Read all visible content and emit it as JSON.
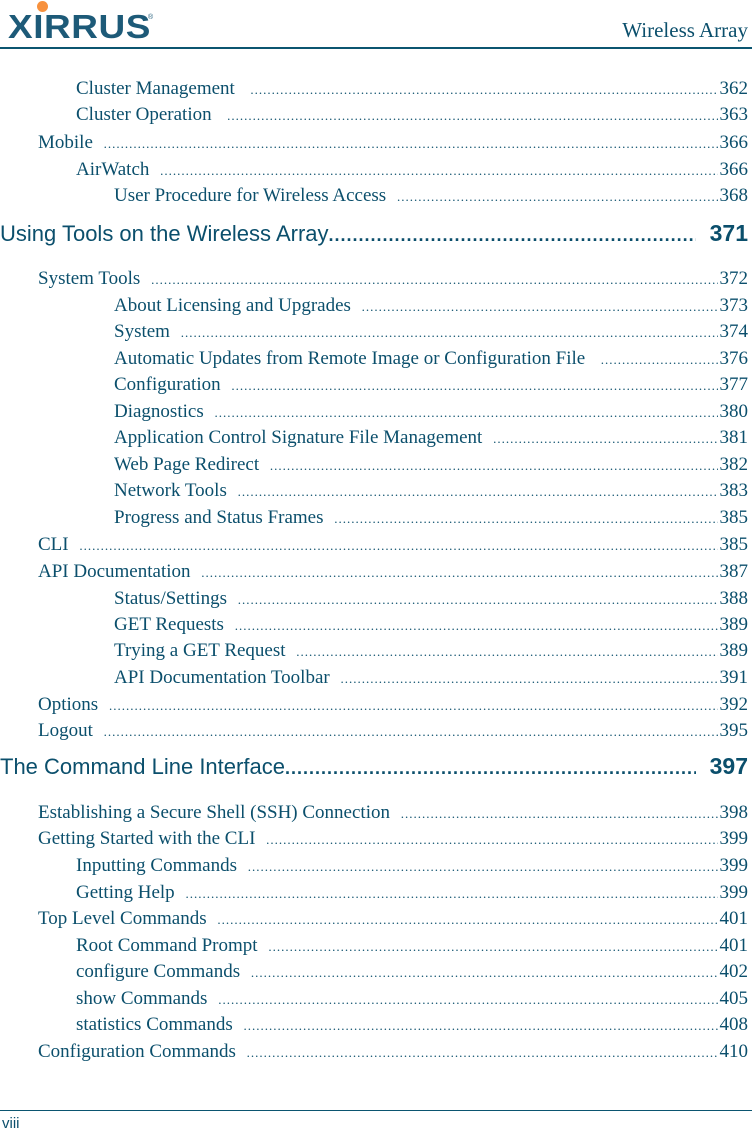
{
  "header": {
    "logo_text": "XIRRUS",
    "logo_registered": "®",
    "doc_title": "Wireless Array",
    "brand_colors": {
      "primary": "#1d5a78",
      "accent_dot": "#f7913d",
      "text": "#0b4f6c"
    }
  },
  "toc": {
    "entries": [
      {
        "level": 2,
        "label": "Cluster Management  ",
        "page": "362"
      },
      {
        "level": 2,
        "label": "Cluster Operation  ",
        "page": "363"
      },
      {
        "level": 1,
        "label": "Mobile ",
        "page": "366"
      },
      {
        "level": 2,
        "label": "AirWatch ",
        "page": "366"
      },
      {
        "level": 3,
        "label": "User Procedure for Wireless Access ",
        "page": "368"
      },
      {
        "level": 0,
        "label": "Using Tools on the Wireless Array",
        "page": "371"
      },
      {
        "level": 1,
        "label": "System Tools ",
        "page": "372"
      },
      {
        "level": 3,
        "label": "About Licensing and Upgrades ",
        "page": "373"
      },
      {
        "level": 3,
        "label": "System ",
        "page": "374"
      },
      {
        "level": 3,
        "label": "Automatic Updates from Remote Image or Configuration File  ",
        "page": "376"
      },
      {
        "level": 3,
        "label": "Configuration ",
        "page": "377"
      },
      {
        "level": 3,
        "label": "Diagnostics ",
        "page": "380"
      },
      {
        "level": 3,
        "label": "Application Control Signature File Management ",
        "page": "381"
      },
      {
        "level": 3,
        "label": "Web Page Redirect ",
        "page": "382"
      },
      {
        "level": 3,
        "label": "Network Tools ",
        "page": "383"
      },
      {
        "level": 3,
        "label": "Progress and Status Frames ",
        "page": "385"
      },
      {
        "level": 1,
        "label": "CLI ",
        "page": "385"
      },
      {
        "level": 1,
        "label": "API Documentation ",
        "page": "387"
      },
      {
        "level": 3,
        "label": "Status/Settings ",
        "page": "388"
      },
      {
        "level": 3,
        "label": "GET Requests ",
        "page": "389"
      },
      {
        "level": 3,
        "label": "Trying a GET Request ",
        "page": "389"
      },
      {
        "level": 3,
        "label": "API Documentation Toolbar ",
        "page": "391"
      },
      {
        "level": 1,
        "label": "Options ",
        "page": "392"
      },
      {
        "level": 1,
        "label": "Logout ",
        "page": "395"
      },
      {
        "level": 0,
        "label": "The Command Line Interface",
        "page": "397"
      },
      {
        "level": 1,
        "label": "Establishing a Secure Shell (SSH) Connection ",
        "page": "398"
      },
      {
        "level": 1,
        "label": "Getting Started with the CLI ",
        "page": "399"
      },
      {
        "level": 2,
        "label": "Inputting Commands ",
        "page": "399"
      },
      {
        "level": 2,
        "label": "Getting Help ",
        "page": "399"
      },
      {
        "level": 1,
        "label": "Top Level Commands ",
        "page": "401"
      },
      {
        "level": 2,
        "label": "Root Command Prompt ",
        "page": "401"
      },
      {
        "level": 2,
        "label": "configure Commands ",
        "page": "402"
      },
      {
        "level": 2,
        "label": "show Commands ",
        "page": "405"
      },
      {
        "level": 2,
        "label": "statistics Commands ",
        "page": "408"
      },
      {
        "level": 1,
        "label": "Configuration Commands ",
        "page": "410"
      }
    ]
  },
  "footer": {
    "page_number": "viii"
  }
}
